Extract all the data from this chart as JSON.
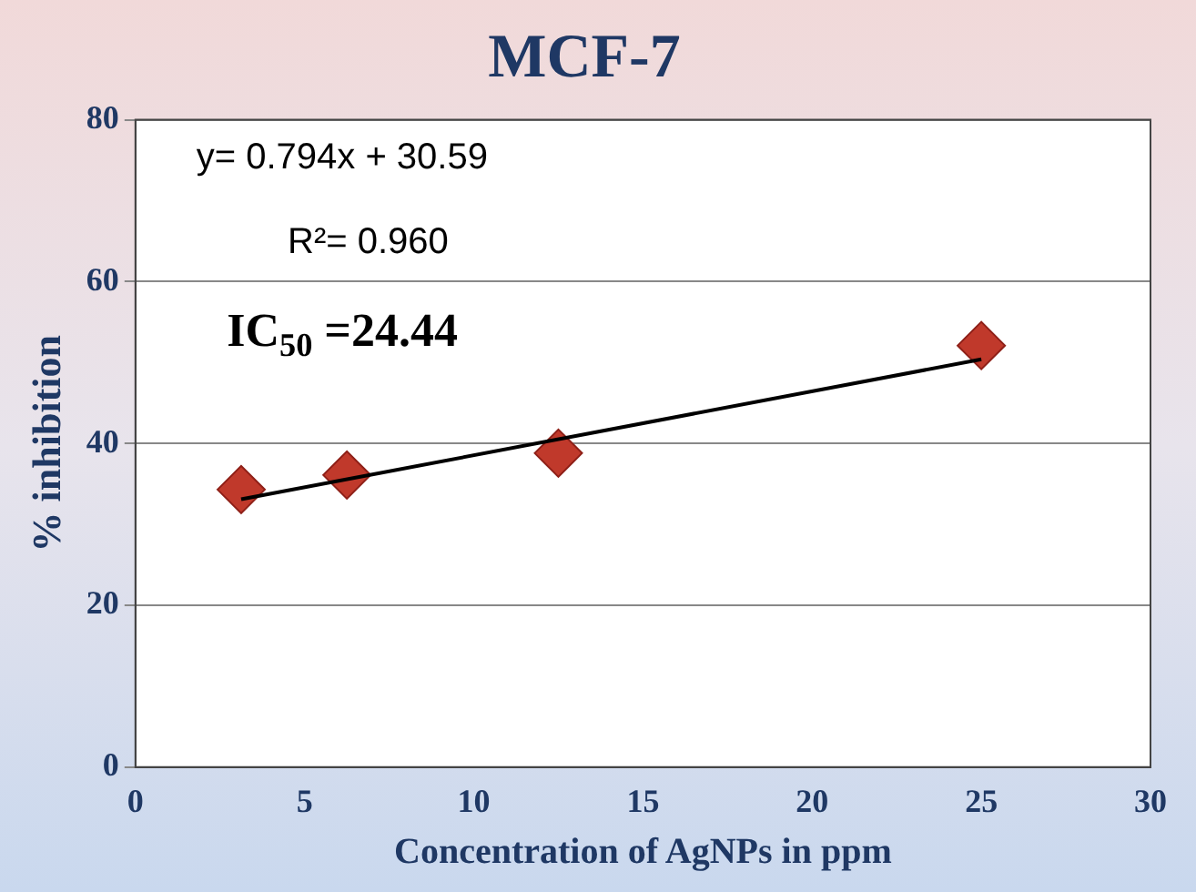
{
  "chart_data": {
    "type": "scatter",
    "title": "MCF-7",
    "xlabel": "Concentration of AgNPs in ppm",
    "ylabel": "% inhibition",
    "x": [
      3.125,
      6.25,
      12.5,
      25
    ],
    "series": [
      {
        "color": "#c0392b",
        "values": [
          34.3,
          36.1,
          38.8,
          52.1
        ]
      },
      {
        "type": "line",
        "color": "#000000",
        "x": [
          3.125,
          25
        ],
        "values": [
          33.1,
          50.4
        ],
        "marker": "none"
      }
    ],
    "xlim": [
      0,
      30
    ],
    "xticks": [
      0,
      5,
      10,
      15,
      20,
      25,
      30
    ],
    "ylim": [
      0,
      80
    ],
    "yticks": [
      0,
      20,
      40,
      60,
      80
    ],
    "grid": "y",
    "legend": false,
    "marker": "diamond",
    "line_style": "solid",
    "annotations": [
      "y= 0.794x + 30.59",
      "R²= 0.960",
      "IC$_{50}$ =24.44"
    ]
  }
}
